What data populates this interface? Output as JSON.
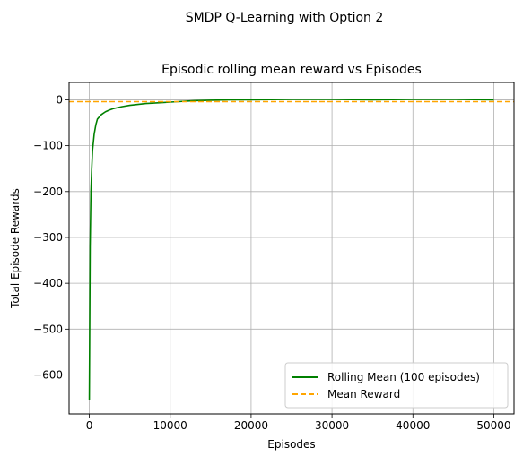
{
  "suptitle": "SMDP Q-Learning with Option 2",
  "chart_data": {
    "type": "line",
    "title": "Episodic rolling mean reward vs Episodes",
    "xlabel": "Episodes",
    "ylabel": "Total Episode Rewards",
    "xlim": [
      -2500,
      52500
    ],
    "ylim": [
      -685,
      38
    ],
    "xticks": [
      0,
      10000,
      20000,
      30000,
      40000,
      50000
    ],
    "xtick_labels": [
      "0",
      "10000",
      "20000",
      "30000",
      "40000",
      "50000"
    ],
    "yticks": [
      0,
      -100,
      -200,
      -300,
      -400,
      -500,
      -600
    ],
    "ytick_labels": [
      "0",
      "−100",
      "−200",
      "−300",
      "−400",
      "−500",
      "−600"
    ],
    "grid": true,
    "legend_position": "lower-right",
    "series": [
      {
        "name": "Rolling Mean (100 episodes)",
        "color": "#008000",
        "style": "solid",
        "x": [
          0,
          100,
          200,
          300,
          400,
          600,
          800,
          1000,
          1500,
          2000,
          2500,
          3000,
          4000,
          5000,
          6000,
          7000,
          8000,
          9000,
          10000,
          11000,
          12000,
          13000,
          15000,
          17500,
          20000,
          25000,
          30000,
          35000,
          40000,
          45000,
          50000
        ],
        "y": [
          -655,
          -320,
          -200,
          -150,
          -110,
          -75,
          -55,
          -42,
          -32,
          -26,
          -22,
          -19,
          -15,
          -12,
          -10,
          -8,
          -7,
          -6,
          -5,
          -4,
          -3,
          -2,
          -1,
          0,
          0,
          1,
          1,
          0,
          1,
          1,
          0
        ]
      },
      {
        "name": "Mean Reward",
        "color": "#FFA500",
        "style": "dashed",
        "y_constant": -4
      }
    ]
  }
}
